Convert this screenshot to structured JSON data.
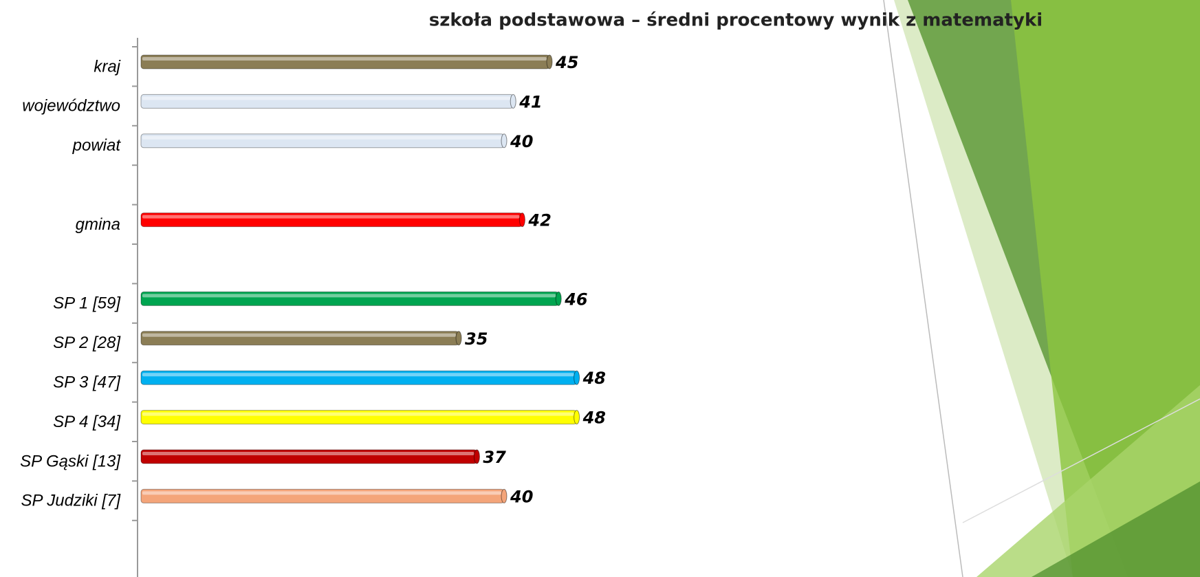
{
  "chart_data": {
    "type": "bar",
    "orientation": "horizontal",
    "title": "szkoła podstawowa – średni procentowy  wynik z matematyki",
    "categories": [
      "kraj",
      "województwo",
      "powiat",
      null,
      "gmina",
      null,
      "SP 1 [59]",
      "SP 2 [28]",
      "SP 3 [47]",
      "SP 4 [34]",
      "SP Gąski [13]",
      "SP Judziki [7]"
    ],
    "values": [
      45,
      41,
      40,
      null,
      42,
      null,
      46,
      35,
      48,
      48,
      37,
      40
    ],
    "colors": [
      "#8b7d55",
      "#dce6f2",
      "#dce6f2",
      null,
      "#ff0000",
      null,
      "#00a550",
      "#8b7d55",
      "#00b0f0",
      "#ffff00",
      "#c00000",
      "#f4a57a"
    ],
    "xlim": [
      0,
      80
    ]
  }
}
